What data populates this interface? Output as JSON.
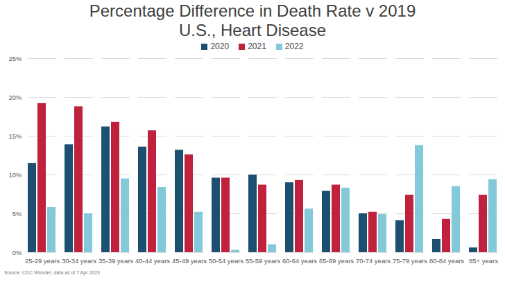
{
  "chart_data": {
    "type": "bar",
    "title": "Percentage Difference in Death Rate v 2019",
    "subtitle": "U.S., Heart Disease",
    "source": "Source: CDC Wonder; data as of 7 Apr 2023",
    "categories": [
      "25-29 years",
      "30-34 years",
      "35-39 years",
      "40-44 years",
      "45-49 years",
      "50-54 years",
      "55-59 years",
      "60-64 years",
      "65-69 years",
      "70-74 years",
      "75-79 years",
      "80-84 years",
      "85+ years"
    ],
    "series": [
      {
        "name": "2020",
        "color": "#1c4f70",
        "values": [
          11.5,
          13.9,
          16.2,
          13.6,
          13.2,
          9.6,
          10.0,
          9.0,
          7.9,
          5.0,
          4.1,
          1.7,
          0.6
        ]
      },
      {
        "name": "2021",
        "color": "#c0213c",
        "values": [
          19.2,
          18.8,
          16.8,
          15.7,
          12.6,
          9.6,
          8.7,
          9.3,
          8.7,
          5.2,
          7.4,
          4.3,
          7.4
        ]
      },
      {
        "name": "2022",
        "color": "#82c9d9",
        "values": [
          5.8,
          5.0,
          9.5,
          8.4,
          5.2,
          0.3,
          1.0,
          5.6,
          8.3,
          4.9,
          13.8,
          8.5,
          9.4
        ]
      }
    ],
    "ylim": [
      0,
      25
    ],
    "yticks": [
      {
        "value": 0,
        "label": "0%"
      },
      {
        "value": 5,
        "label": "5%"
      },
      {
        "value": 10,
        "label": "10%"
      },
      {
        "value": 15,
        "label": "15%"
      },
      {
        "value": 20,
        "label": "20%"
      },
      {
        "value": 25,
        "label": "25%"
      }
    ],
    "grid": true,
    "legend": "top"
  }
}
